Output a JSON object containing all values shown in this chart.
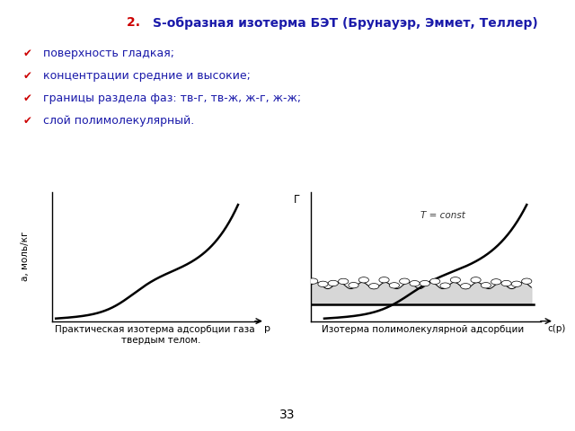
{
  "title_prefix": "2. ",
  "title_main": "S-образная изотерма БЭТ (Брунауэр, Эммет, Теллер)",
  "title_prefix_color": "#cc0000",
  "title_main_color": "#1a1aaa",
  "bullet_color_check": "#cc0000",
  "bullet_color_text": "#1a1aaa",
  "bullets": [
    "поверхность гладкая;",
    "концентрации средние и высокие;",
    "границы раздела фаз: тв-г, тв-ж, ж-г, ж-ж;",
    "слой полимолекулярный."
  ],
  "left_ylabel": "а, моль/кг",
  "left_xlabel": "р",
  "left_caption": "Практическая изотерма адсорбции газа\n    твердым телом.",
  "right_ylabel": "Г",
  "right_xlabel": "с(р)",
  "right_annotation": "T = const",
  "right_caption": "Изотерма полимолекулярной адсорбции",
  "page_number": "33",
  "bg_color": "#ffffff",
  "curve_color": "#000000",
  "curve_lw": 1.8
}
